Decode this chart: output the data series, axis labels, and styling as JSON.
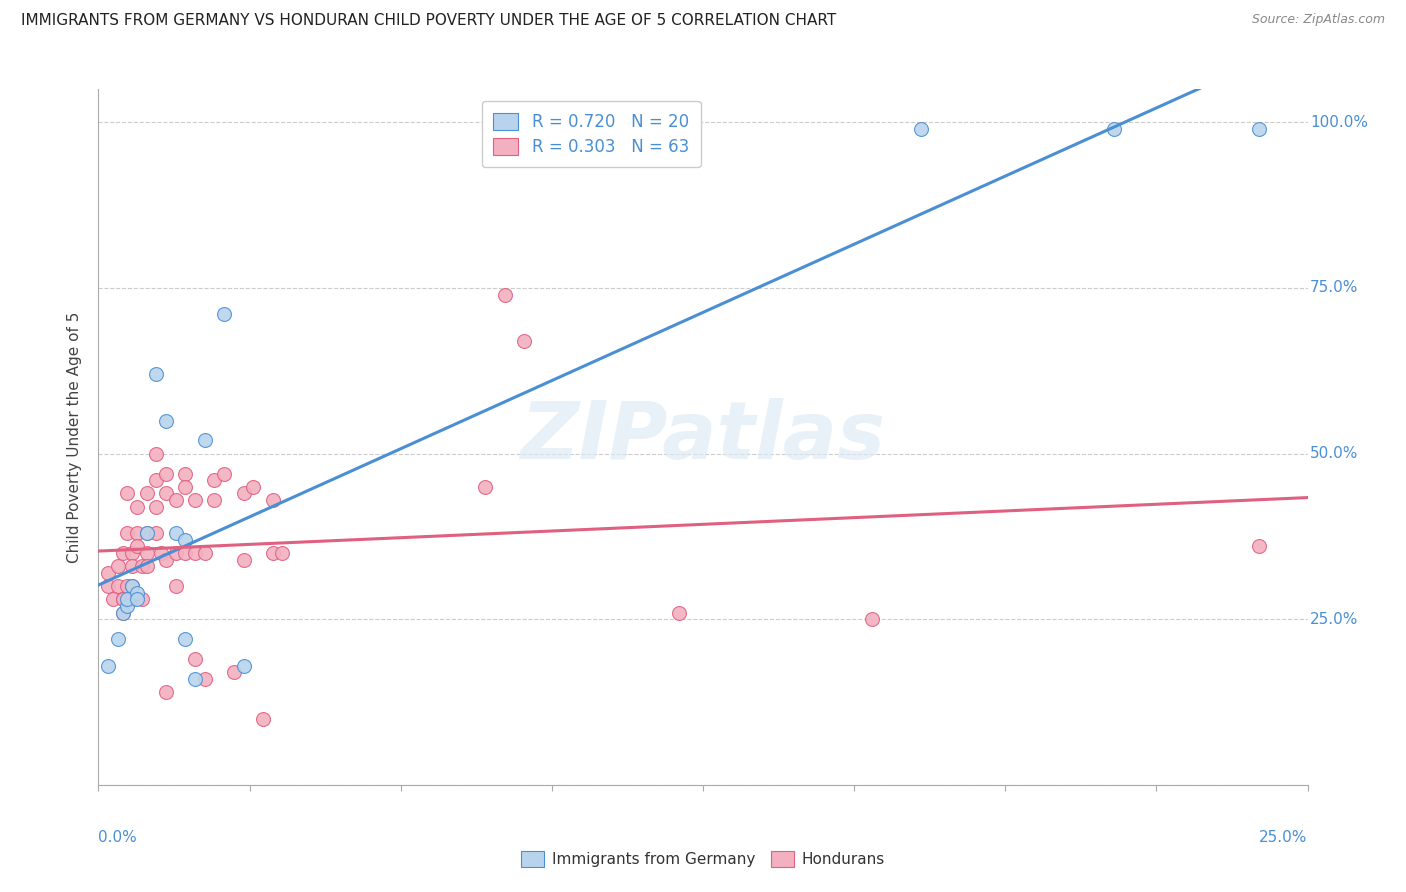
{
  "title": "IMMIGRANTS FROM GERMANY VS HONDURAN CHILD POVERTY UNDER THE AGE OF 5 CORRELATION CHART",
  "source": "Source: ZipAtlas.com",
  "ylabel": "Child Poverty Under the Age of 5",
  "right_ytick_labels": [
    "100.0%",
    "75.0%",
    "50.0%",
    "25.0%"
  ],
  "right_ytick_vals": [
    1.0,
    0.75,
    0.5,
    0.25
  ],
  "color_blue": "#b8d4ec",
  "color_pink": "#f2b0c0",
  "line_blue": "#4a8fd4",
  "line_pink": "#e06080",
  "background_color": "#ffffff",
  "grid_color": "#cccccc",
  "blue_points": [
    [
      0.002,
      0.18
    ],
    [
      0.004,
      0.22
    ],
    [
      0.005,
      0.26
    ],
    [
      0.006,
      0.27
    ],
    [
      0.006,
      0.28
    ],
    [
      0.007,
      0.3
    ],
    [
      0.008,
      0.29
    ],
    [
      0.008,
      0.28
    ],
    [
      0.01,
      0.38
    ],
    [
      0.012,
      0.62
    ],
    [
      0.014,
      0.55
    ],
    [
      0.016,
      0.38
    ],
    [
      0.018,
      0.37
    ],
    [
      0.018,
      0.22
    ],
    [
      0.02,
      0.16
    ],
    [
      0.022,
      0.52
    ],
    [
      0.026,
      0.71
    ],
    [
      0.03,
      0.18
    ],
    [
      0.17,
      0.99
    ],
    [
      0.21,
      0.99
    ],
    [
      0.24,
      0.99
    ]
  ],
  "pink_points": [
    [
      0.002,
      0.32
    ],
    [
      0.002,
      0.3
    ],
    [
      0.003,
      0.28
    ],
    [
      0.004,
      0.33
    ],
    [
      0.004,
      0.3
    ],
    [
      0.005,
      0.28
    ],
    [
      0.005,
      0.28
    ],
    [
      0.005,
      0.26
    ],
    [
      0.005,
      0.35
    ],
    [
      0.006,
      0.3
    ],
    [
      0.006,
      0.44
    ],
    [
      0.006,
      0.38
    ],
    [
      0.007,
      0.35
    ],
    [
      0.007,
      0.33
    ],
    [
      0.007,
      0.3
    ],
    [
      0.007,
      0.28
    ],
    [
      0.008,
      0.42
    ],
    [
      0.008,
      0.38
    ],
    [
      0.008,
      0.36
    ],
    [
      0.009,
      0.33
    ],
    [
      0.009,
      0.28
    ],
    [
      0.01,
      0.44
    ],
    [
      0.01,
      0.38
    ],
    [
      0.01,
      0.35
    ],
    [
      0.01,
      0.33
    ],
    [
      0.012,
      0.5
    ],
    [
      0.012,
      0.46
    ],
    [
      0.012,
      0.42
    ],
    [
      0.012,
      0.38
    ],
    [
      0.013,
      0.35
    ],
    [
      0.014,
      0.47
    ],
    [
      0.014,
      0.44
    ],
    [
      0.014,
      0.34
    ],
    [
      0.014,
      0.14
    ],
    [
      0.016,
      0.43
    ],
    [
      0.016,
      0.35
    ],
    [
      0.016,
      0.3
    ],
    [
      0.018,
      0.47
    ],
    [
      0.018,
      0.45
    ],
    [
      0.018,
      0.35
    ],
    [
      0.02,
      0.43
    ],
    [
      0.02,
      0.35
    ],
    [
      0.02,
      0.19
    ],
    [
      0.022,
      0.35
    ],
    [
      0.022,
      0.16
    ],
    [
      0.024,
      0.46
    ],
    [
      0.024,
      0.43
    ],
    [
      0.026,
      0.47
    ],
    [
      0.028,
      0.17
    ],
    [
      0.03,
      0.44
    ],
    [
      0.03,
      0.34
    ],
    [
      0.032,
      0.45
    ],
    [
      0.034,
      0.1
    ],
    [
      0.036,
      0.43
    ],
    [
      0.036,
      0.35
    ],
    [
      0.038,
      0.35
    ],
    [
      0.08,
      0.45
    ],
    [
      0.084,
      0.74
    ],
    [
      0.088,
      0.67
    ],
    [
      0.12,
      0.26
    ],
    [
      0.16,
      0.25
    ],
    [
      0.24,
      0.36
    ]
  ],
  "xlim": [
    0.0,
    0.25
  ],
  "ylim": [
    0.0,
    1.05
  ],
  "n_xticks": 9,
  "ytick_vals": [
    0.0,
    0.25,
    0.5,
    0.75,
    1.0
  ]
}
